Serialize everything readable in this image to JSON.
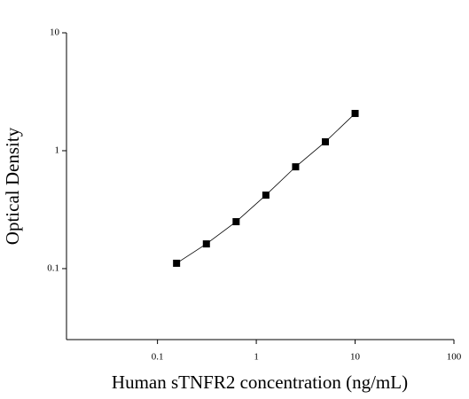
{
  "chart_data": {
    "type": "scatter-line",
    "x_label": "Human sTNFR2 concentration (ng/mL)",
    "y_label": "Optical Density",
    "x": [
      0.156,
      0.3125,
      0.625,
      1.25,
      2.5,
      5,
      10
    ],
    "values": [
      0.111,
      0.162,
      0.25,
      0.42,
      0.73,
      1.19,
      2.07
    ],
    "color": "#000000",
    "xlim": [
      0.012,
      100
    ],
    "xticks": [
      0.1,
      1,
      10,
      100
    ],
    "ylim": [
      0.025,
      10
    ],
    "yticks": [
      0.1,
      1,
      10
    ],
    "log_x": true,
    "log_y": true,
    "grid": false
  }
}
